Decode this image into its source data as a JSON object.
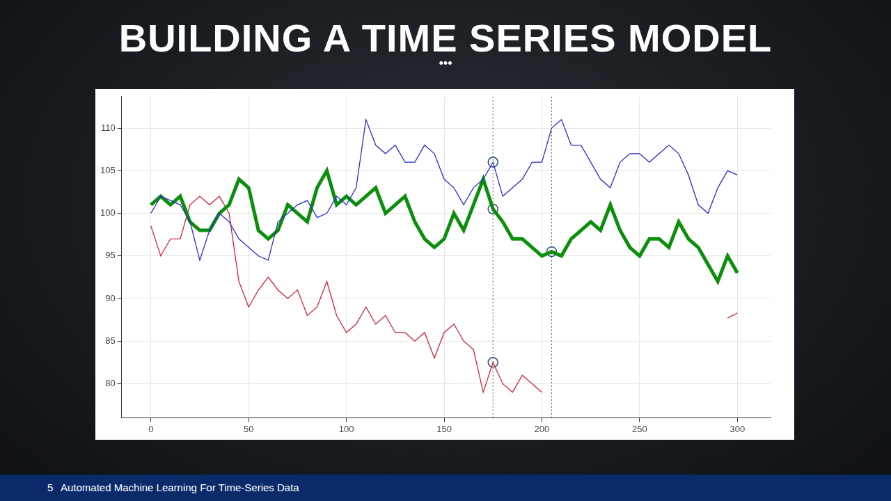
{
  "slide": {
    "title": "BUILDING A TIME SERIES MODEL",
    "subtitle": "•••",
    "page": 5,
    "footer": "Automated Machine Learning For Time-Series Data"
  },
  "chart_data": {
    "type": "line",
    "x": [
      0,
      5,
      10,
      15,
      20,
      25,
      30,
      35,
      40,
      45,
      50,
      55,
      60,
      65,
      70,
      75,
      80,
      85,
      90,
      95,
      100,
      105,
      110,
      115,
      120,
      125,
      130,
      135,
      140,
      145,
      150,
      155,
      160,
      165,
      170,
      175,
      180,
      185,
      190,
      195,
      200,
      205,
      210,
      215,
      220,
      225,
      230,
      235,
      240,
      245,
      250,
      255,
      260,
      265,
      270,
      275,
      280,
      285,
      290,
      295,
      300
    ],
    "series": [
      {
        "color": "#2a2ad0",
        "line_style": "solid",
        "values": [
          100,
          102,
          101.5,
          101,
          99,
          94.5,
          98,
          100,
          99,
          97,
          96,
          95,
          94.5,
          99,
          100,
          101,
          101.5,
          99.5,
          100,
          102,
          101,
          103,
          111,
          108,
          107,
          108,
          106,
          106,
          108,
          107,
          104,
          103,
          101,
          103,
          104,
          106,
          102,
          103,
          104,
          106,
          106,
          110,
          111,
          108,
          108,
          106,
          104,
          103,
          106,
          107,
          107,
          106,
          107,
          108,
          107,
          104.5,
          101,
          100,
          103,
          105,
          104.5
        ]
      },
      {
        "color": "#0a8f0a",
        "line_style": "thick",
        "values": [
          101,
          102,
          101,
          102,
          99,
          98,
          98,
          100,
          101,
          104,
          103,
          98,
          97,
          98,
          101,
          100,
          99,
          103,
          105,
          101,
          102,
          101,
          102,
          103,
          100,
          101,
          102,
          99,
          97,
          96,
          97,
          100,
          98,
          101,
          104,
          100.5,
          99,
          97,
          97,
          96,
          95,
          95.5,
          95,
          97,
          98,
          99,
          98,
          101,
          98,
          96,
          95,
          97,
          97,
          96,
          99,
          97,
          96,
          94,
          92,
          95,
          93
        ]
      },
      {
        "color": "#d62035",
        "line_style": "solid",
        "values": [
          98.5,
          95,
          97,
          97,
          101,
          102,
          101,
          102,
          100,
          92,
          89,
          91,
          92.5,
          91,
          90,
          91,
          88,
          89,
          92,
          88,
          86,
          87,
          89,
          87,
          88,
          86,
          86,
          85,
          86,
          83,
          86,
          87,
          85,
          84,
          79,
          82.5,
          80,
          79,
          81,
          80,
          79,
          null,
          null,
          null,
          null,
          null,
          null,
          null,
          null,
          null,
          null,
          null,
          null,
          null,
          null,
          null,
          null,
          null,
          null,
          87.7,
          88.3
        ]
      }
    ],
    "markers": {
      "marker": "circle",
      "color": "#2b4c7e",
      "points": [
        {
          "x": 175,
          "y": 106
        },
        {
          "x": 175,
          "y": 100.5
        },
        {
          "x": 175,
          "y": 82.5
        },
        {
          "x": 205,
          "y": 95.5
        }
      ]
    },
    "vlines": {
      "line_style": "dotted",
      "color": "#555555",
      "values": [
        175,
        205
      ]
    },
    "xlim": [
      -15,
      317
    ],
    "xticks": [
      0,
      50,
      100,
      150,
      200,
      250,
      300
    ],
    "ylim": [
      76,
      113.7
    ],
    "yticks": [
      80,
      85,
      90,
      95,
      100,
      105,
      110
    ],
    "grid": true
  }
}
